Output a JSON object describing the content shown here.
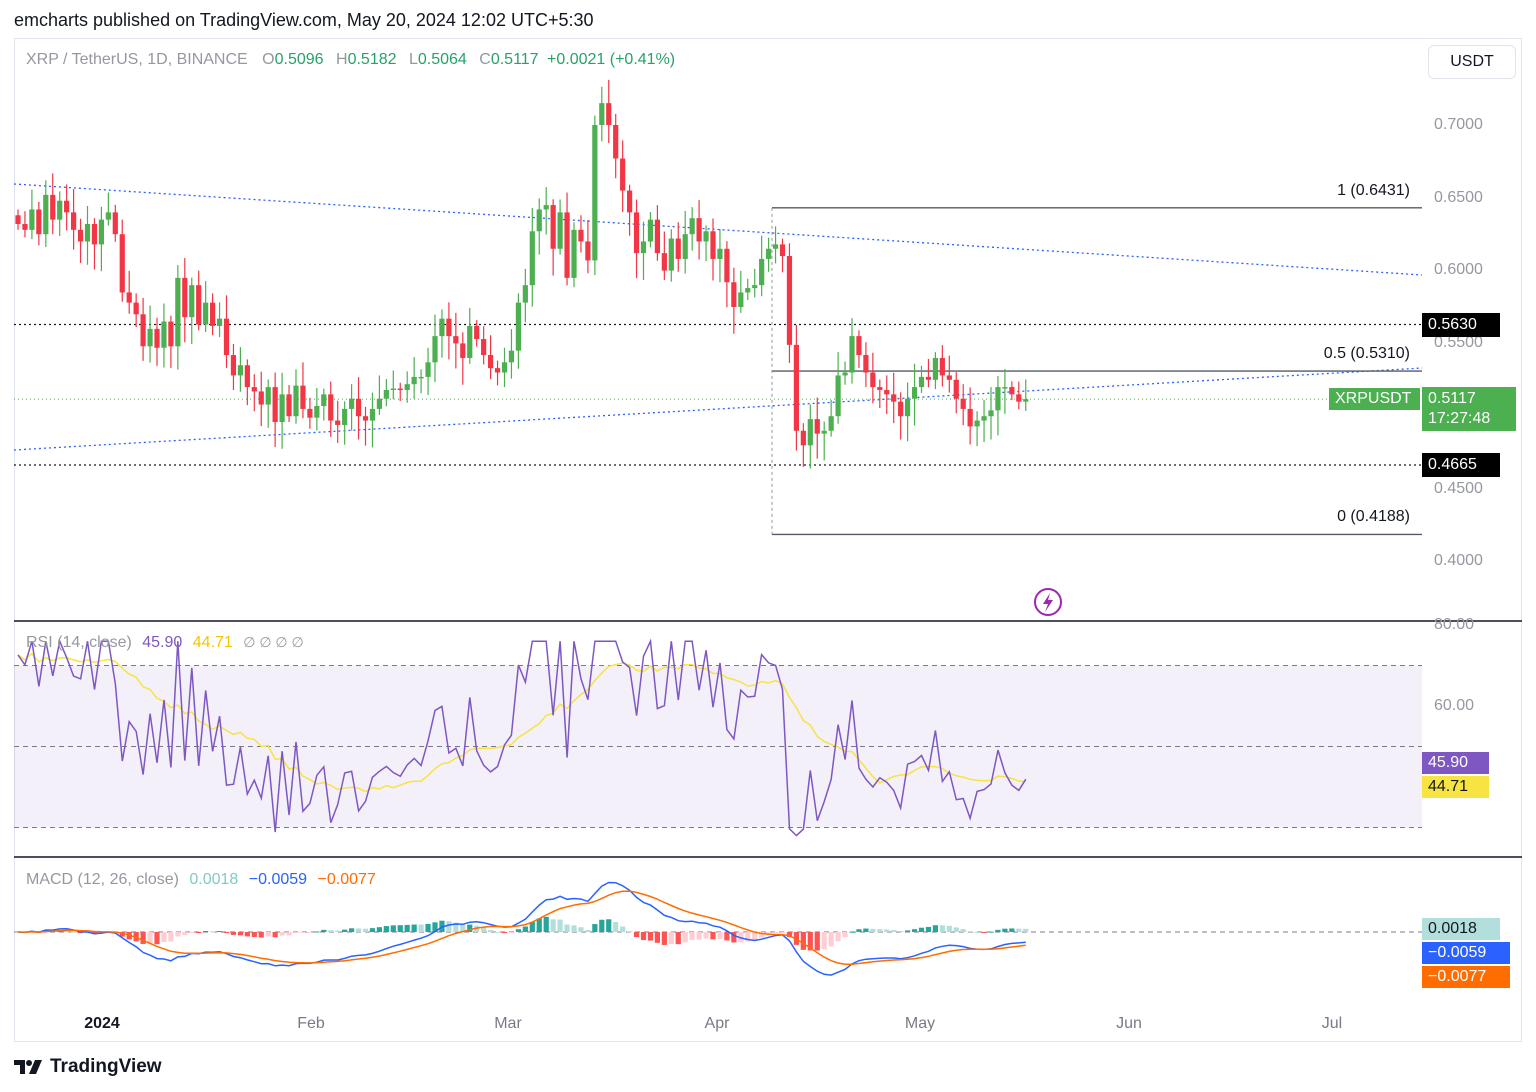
{
  "caption": "emcharts published on TradingView.com, May 20, 2024 12:02 UTC+5:30",
  "header": {
    "symbol": "XRP / TetherUS, 1D, BINANCE",
    "o_label": "O",
    "o_value": "0.5096",
    "h_label": "H",
    "h_value": "0.5182",
    "l_label": "L",
    "l_value": "0.5064",
    "c_label": "C",
    "c_value": "0.5117",
    "change": "+0.0021 (+0.41%)"
  },
  "currency_button": "USDT",
  "price_axis": [
    "0.7000",
    "0.6500",
    "0.6000",
    "0.5500",
    "0.4500",
    "0.4000"
  ],
  "fib": {
    "level_1": "1 (0.6431)",
    "level_05": "0.5 (0.5310)",
    "level_0": "0 (0.4188)"
  },
  "price_tags": {
    "resistance": "0.5630",
    "support": "0.4665",
    "symbol": "XRPUSDT",
    "last": "0.5117",
    "countdown": "17:27:48"
  },
  "rsi": {
    "label": "RSI (14, close)",
    "value": "45.90",
    "ma_value": "44.71",
    "empty_marks": "∅ ∅ ∅ ∅",
    "axis": [
      "80.00",
      "60.00"
    ]
  },
  "macd": {
    "label": "MACD (12, 26, close)",
    "hist": "0.0018",
    "macd": "−0.0059",
    "signal": "−0.0077"
  },
  "time_axis": [
    "2024",
    "Feb",
    "Mar",
    "Apr",
    "May",
    "Jun",
    "Jul"
  ],
  "brand": "TradingView",
  "colors": {
    "up": "#4caf50",
    "down": "#f23645",
    "rsi_line": "#7e57c2",
    "rsi_ma": "#f7e342",
    "macd_line": "#2962ff",
    "signal_line": "#ff6d00",
    "trendline": "#2962ff"
  },
  "chart_data": {
    "type": "candlestick",
    "symbol": "XRP / TetherUS",
    "interval": "1D",
    "ylim": [
      0.38,
      0.745
    ],
    "last_close": 0.5117,
    "horizontal_levels": [
      0.563,
      0.4665
    ],
    "fibonacci": [
      {
        "ratio": 1,
        "price": 0.6431
      },
      {
        "ratio": 0.5,
        "price": 0.531
      },
      {
        "ratio": 0,
        "price": 0.4188
      }
    ],
    "closes": [
      0.632,
      0.628,
      0.642,
      0.625,
      0.652,
      0.635,
      0.648,
      0.64,
      0.628,
      0.62,
      0.632,
      0.618,
      0.635,
      0.64,
      0.625,
      0.585,
      0.578,
      0.57,
      0.548,
      0.56,
      0.547,
      0.565,
      0.548,
      0.595,
      0.568,
      0.59,
      0.563,
      0.578,
      0.562,
      0.567,
      0.542,
      0.528,
      0.535,
      0.52,
      0.517,
      0.508,
      0.52,
      0.496,
      0.515,
      0.5,
      0.521,
      0.505,
      0.499,
      0.507,
      0.515,
      0.497,
      0.494,
      0.505,
      0.512,
      0.5,
      0.497,
      0.505,
      0.512,
      0.518,
      0.519,
      0.518,
      0.522,
      0.527,
      0.527,
      0.537,
      0.555,
      0.567,
      0.555,
      0.55,
      0.54,
      0.562,
      0.553,
      0.542,
      0.533,
      0.53,
      0.537,
      0.545,
      0.578,
      0.59,
      0.627,
      0.642,
      0.645,
      0.615,
      0.64,
      0.595,
      0.628,
      0.62,
      0.607,
      0.7,
      0.715,
      0.7,
      0.677,
      0.655,
      0.64,
      0.612,
      0.62,
      0.635,
      0.612,
      0.6,
      0.622,
      0.608,
      0.625,
      0.636,
      0.62,
      0.627,
      0.608,
      0.615,
      0.592,
      0.575,
      0.585,
      0.588,
      0.59,
      0.608,
      0.615,
      0.618,
      0.61,
      0.549,
      0.49,
      0.48,
      0.498,
      0.488,
      0.49,
      0.5,
      0.528,
      0.53,
      0.555,
      0.542,
      0.53,
      0.52,
      0.518,
      0.515,
      0.51,
      0.5,
      0.512,
      0.52,
      0.527,
      0.525,
      0.54,
      0.528,
      0.525,
      0.512,
      0.505,
      0.493,
      0.497,
      0.5,
      0.504,
      0.52,
      0.52,
      0.515,
      0.51,
      0.5117
    ],
    "rsi": {
      "ylim": [
        22,
        82
      ],
      "bands": [
        70,
        50,
        30
      ]
    },
    "macd": {
      "macd": -0.0059,
      "signal": -0.0077,
      "histogram": 0.0018
    }
  }
}
